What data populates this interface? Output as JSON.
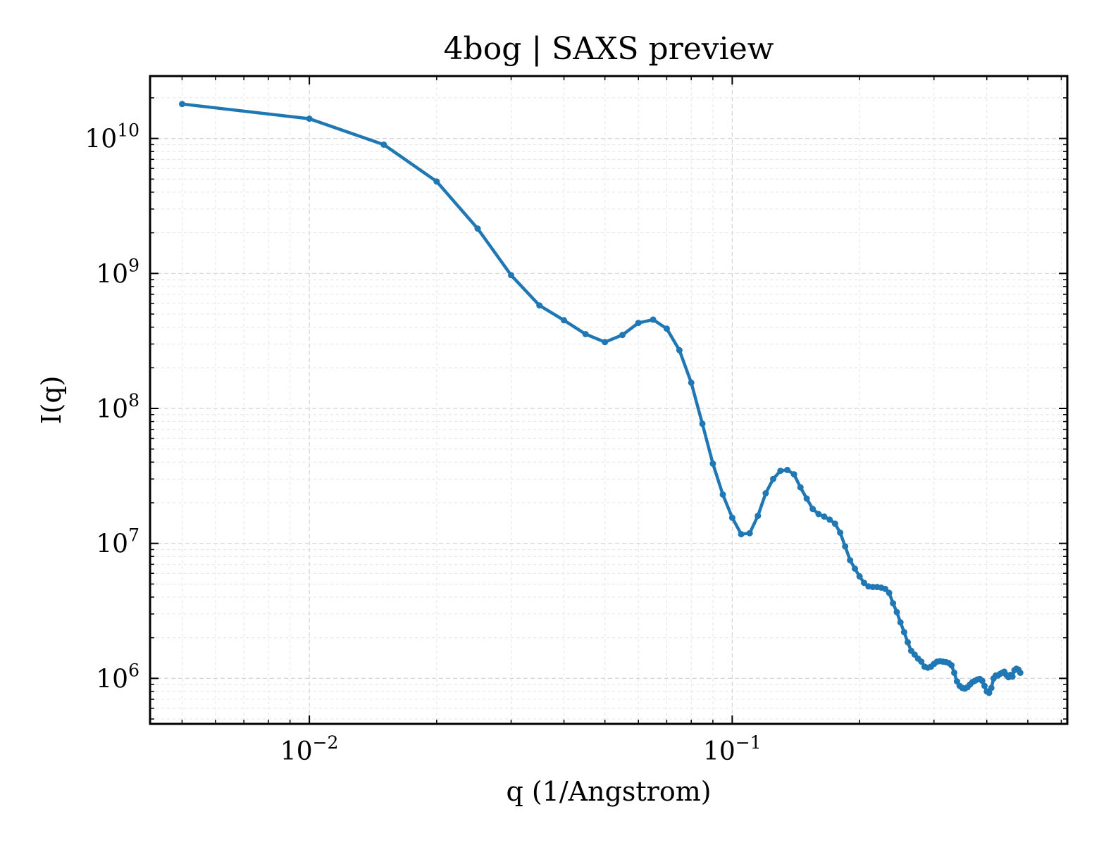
{
  "chart_data": {
    "type": "line",
    "title": "4bog | SAXS preview",
    "xlabel": "q (1/Angstrom)",
    "ylabel": "I(q)",
    "xscale": "log",
    "yscale": "log",
    "xlim": [
      0.0042,
      0.62
    ],
    "ylim": [
      460000,
      29000000000
    ],
    "grid": true,
    "legend": "none",
    "x_ticks": [
      {
        "value": 0.01,
        "base": "10",
        "exp": "−2"
      },
      {
        "value": 0.1,
        "base": "10",
        "exp": "−1"
      }
    ],
    "y_ticks": [
      {
        "value": 1000000,
        "base": "10",
        "exp": "6"
      },
      {
        "value": 10000000,
        "base": "10",
        "exp": "7"
      },
      {
        "value": 100000000,
        "base": "10",
        "exp": "8"
      },
      {
        "value": 1000000000,
        "base": "10",
        "exp": "9"
      },
      {
        "value": 10000000000,
        "base": "10",
        "exp": "10"
      }
    ],
    "series": [
      {
        "color": "#1f77b4",
        "marker": "circle",
        "points": [
          [
            0.005,
            18000000000
          ],
          [
            0.01,
            14000000000
          ],
          [
            0.015,
            9000000000
          ],
          [
            0.02,
            4800000000
          ],
          [
            0.025,
            2150000000
          ],
          [
            0.03,
            970000000
          ],
          [
            0.035,
            580000000
          ],
          [
            0.04,
            450000000
          ],
          [
            0.045,
            355000000
          ],
          [
            0.05,
            310000000
          ],
          [
            0.055,
            350000000
          ],
          [
            0.06,
            430000000
          ],
          [
            0.065,
            455000000
          ],
          [
            0.07,
            390000000
          ],
          [
            0.075,
            270000000
          ],
          [
            0.08,
            155000000
          ],
          [
            0.085,
            77000000
          ],
          [
            0.09,
            39000000
          ],
          [
            0.095,
            23000000
          ],
          [
            0.1,
            15500000
          ],
          [
            0.105,
            11700000
          ],
          [
            0.11,
            11900000
          ],
          [
            0.115,
            16000000
          ],
          [
            0.12,
            23500000
          ],
          [
            0.125,
            30000000
          ],
          [
            0.13,
            34500000
          ],
          [
            0.135,
            35000000
          ],
          [
            0.14,
            32500000
          ],
          [
            0.145,
            26000000
          ],
          [
            0.15,
            21500000
          ],
          [
            0.155,
            18000000
          ],
          [
            0.16,
            16500000
          ],
          [
            0.165,
            15800000
          ],
          [
            0.17,
            15000000
          ],
          [
            0.175,
            14000000
          ],
          [
            0.18,
            12000000
          ],
          [
            0.185,
            9500000
          ],
          [
            0.19,
            7500000
          ],
          [
            0.195,
            6500000
          ],
          [
            0.2,
            5700000
          ],
          [
            0.205,
            5100000
          ],
          [
            0.21,
            4800000
          ],
          [
            0.215,
            4750000
          ],
          [
            0.22,
            4750000
          ],
          [
            0.225,
            4700000
          ],
          [
            0.23,
            4600000
          ],
          [
            0.235,
            4300000
          ],
          [
            0.24,
            3600000
          ],
          [
            0.245,
            3100000
          ],
          [
            0.25,
            2600000
          ],
          [
            0.255,
            2200000
          ],
          [
            0.26,
            1850000
          ],
          [
            0.265,
            1600000
          ],
          [
            0.27,
            1500000
          ],
          [
            0.275,
            1400000
          ],
          [
            0.28,
            1330000
          ],
          [
            0.285,
            1220000
          ],
          [
            0.29,
            1200000
          ],
          [
            0.295,
            1220000
          ],
          [
            0.3,
            1280000
          ],
          [
            0.305,
            1330000
          ],
          [
            0.31,
            1340000
          ],
          [
            0.315,
            1330000
          ],
          [
            0.32,
            1320000
          ],
          [
            0.325,
            1300000
          ],
          [
            0.33,
            1250000
          ],
          [
            0.335,
            1100000
          ],
          [
            0.34,
            950000
          ],
          [
            0.345,
            880000
          ],
          [
            0.35,
            850000
          ],
          [
            0.355,
            840000
          ],
          [
            0.36,
            860000
          ],
          [
            0.365,
            900000
          ],
          [
            0.37,
            940000
          ],
          [
            0.375,
            960000
          ],
          [
            0.38,
            980000
          ],
          [
            0.385,
            990000
          ],
          [
            0.39,
            960000
          ],
          [
            0.395,
            880000
          ],
          [
            0.4,
            800000
          ],
          [
            0.405,
            780000
          ],
          [
            0.41,
            850000
          ],
          [
            0.415,
            1000000
          ],
          [
            0.42,
            1050000
          ],
          [
            0.425,
            1050000
          ],
          [
            0.43,
            1080000
          ],
          [
            0.435,
            1100000
          ],
          [
            0.44,
            1120000
          ],
          [
            0.445,
            1060000
          ],
          [
            0.45,
            1020000
          ],
          [
            0.455,
            1060000
          ],
          [
            0.46,
            1030000
          ],
          [
            0.465,
            1150000
          ],
          [
            0.47,
            1180000
          ],
          [
            0.475,
            1160000
          ],
          [
            0.48,
            1100000
          ]
        ]
      }
    ]
  }
}
